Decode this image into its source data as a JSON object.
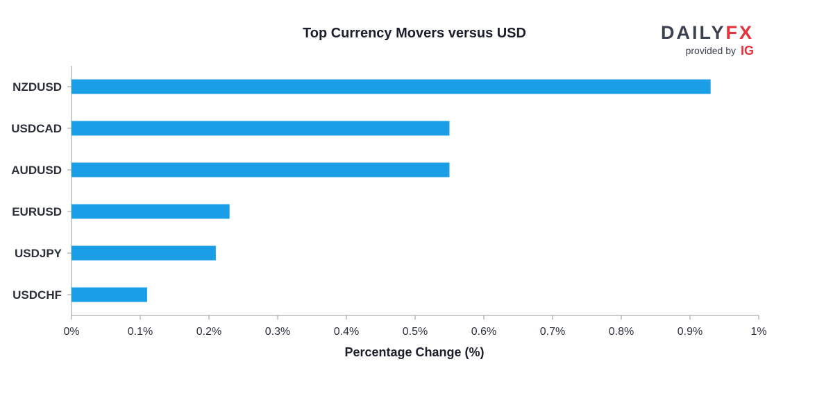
{
  "brand": {
    "name_part1": "DAILY",
    "name_part2": "FX",
    "tagline": "provided by",
    "partner": "IG",
    "colors": {
      "primary": "#3c4150",
      "accent": "#e8313b"
    }
  },
  "chart_data": {
    "type": "bar",
    "orientation": "horizontal",
    "title": "Top Currency Movers versus USD",
    "xlabel": "Percentage Change (%)",
    "ylabel": "",
    "categories": [
      "NZDUSD",
      "USDCAD",
      "AUDUSD",
      "EURUSD",
      "USDJPY",
      "USDCHF"
    ],
    "values": [
      0.93,
      0.55,
      0.55,
      0.23,
      0.21,
      0.11
    ],
    "xlim": [
      0,
      1
    ],
    "xticks": [
      0,
      0.1,
      0.2,
      0.3,
      0.4,
      0.5,
      0.6,
      0.7,
      0.8,
      0.9,
      1
    ],
    "xtick_labels": [
      "0%",
      "0.1%",
      "0.2%",
      "0.3%",
      "0.4%",
      "0.5%",
      "0.6%",
      "0.7%",
      "0.8%",
      "0.9%",
      "1%"
    ],
    "bar_color": "#1a9fe7",
    "grid": false,
    "legend": "none"
  }
}
